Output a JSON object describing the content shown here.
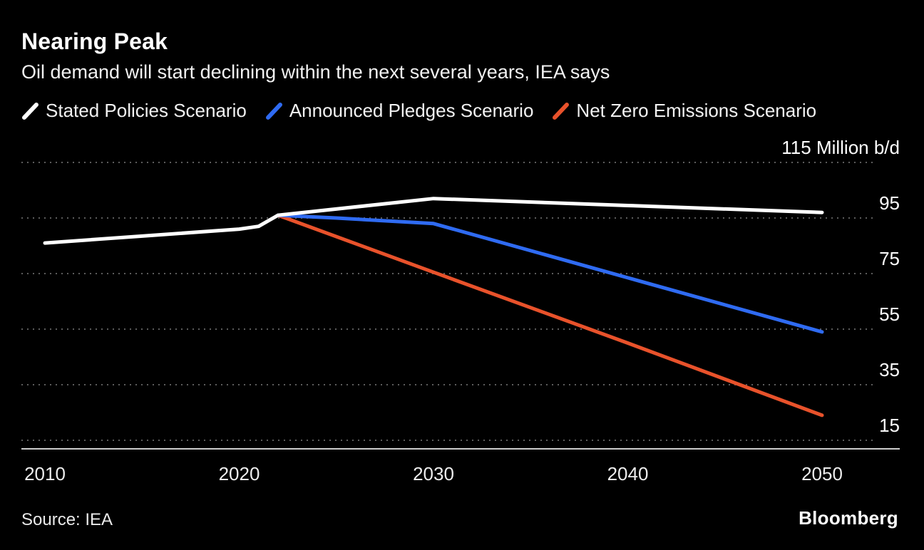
{
  "header": {
    "title": "Nearing Peak",
    "subtitle": "Oil demand will start declining within the next several years, IEA says"
  },
  "footer": {
    "source": "Source: IEA",
    "brand": "Bloomberg"
  },
  "chart_data": {
    "type": "line",
    "title": "Nearing Peak",
    "subtitle": "Oil demand will start declining within the next several years, IEA says",
    "ylabel": "Million b/d",
    "xlabel": "",
    "legend_position": "top",
    "grid": "horizontal-dotted",
    "x_range": [
      2008,
      2054
    ],
    "y_range": [
      10,
      120
    ],
    "x_ticks": [
      2010,
      2020,
      2030,
      2040,
      2050
    ],
    "y_ticks": [
      {
        "value": 115,
        "label": "115 Million b/d"
      },
      {
        "value": 95,
        "label": "95"
      },
      {
        "value": 75,
        "label": "75"
      },
      {
        "value": 55,
        "label": "55"
      },
      {
        "value": 35,
        "label": "35"
      },
      {
        "value": 15,
        "label": "15"
      }
    ],
    "series": [
      {
        "name": "Stated Policies Scenario",
        "color": "#ffffff",
        "points": [
          [
            2010,
            86
          ],
          [
            2015,
            88.5
          ],
          [
            2020,
            91
          ],
          [
            2021,
            92
          ],
          [
            2022,
            96
          ],
          [
            2030,
            102
          ],
          [
            2040,
            99.5
          ],
          [
            2050,
            97
          ]
        ]
      },
      {
        "name": "Announced Pledges Scenario",
        "color": "#2f6bf2",
        "points": [
          [
            2022,
            96
          ],
          [
            2025,
            95
          ],
          [
            2030,
            93
          ],
          [
            2040,
            73.5
          ],
          [
            2050,
            54
          ]
        ]
      },
      {
        "name": "Net Zero Emissions Scenario",
        "color": "#e8522b",
        "points": [
          [
            2022,
            96
          ],
          [
            2030,
            75.5
          ],
          [
            2040,
            50
          ],
          [
            2050,
            24
          ]
        ]
      }
    ]
  }
}
